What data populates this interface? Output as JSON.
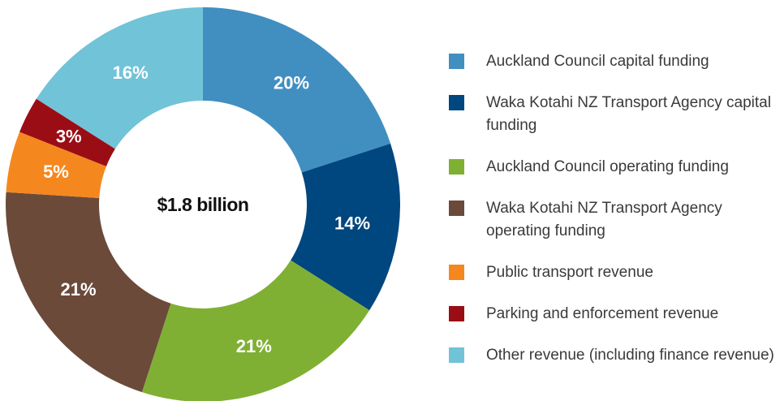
{
  "chart_data": {
    "type": "donut",
    "center_label": "$1.8 billion",
    "categories": [
      "Auckland Council capital funding",
      "Waka Kotahi NZ Transport Agency capital funding",
      "Auckland Council operating funding",
      "Waka Kotahi NZ Transport Agency operating funding",
      "Public transport revenue",
      "Parking and enforcement revenue",
      "Other revenue (including finance revenue)"
    ],
    "values": [
      20,
      14,
      21,
      21,
      5,
      3,
      16
    ],
    "value_labels": [
      "20%",
      "14%",
      "21%",
      "21%",
      "5%",
      "3%",
      "16%"
    ],
    "colors": [
      "#418fc1",
      "#00467f",
      "#7fb034",
      "#6b4a3a",
      "#f5871f",
      "#9b0d15",
      "#71c3d8"
    ],
    "legend": "right"
  }
}
